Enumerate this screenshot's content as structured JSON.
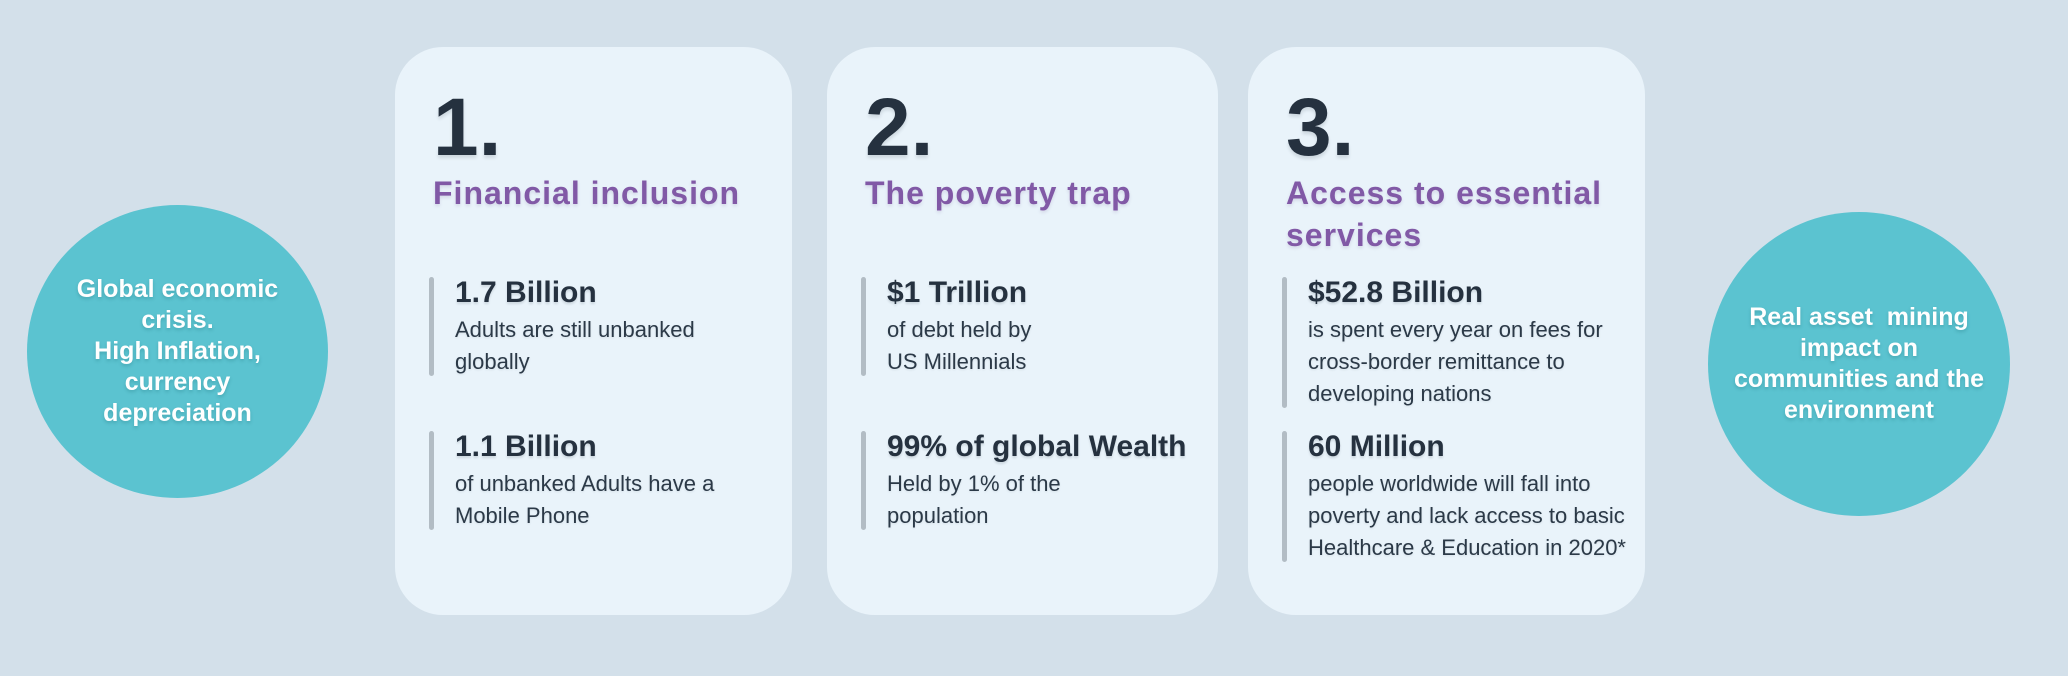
{
  "palette": {
    "background": "#d3e0ea",
    "card_bg": "#e9f3fa",
    "circle_bg": "#5bc3d0",
    "accent_purple": "#8159a6",
    "text_dark": "#25313f",
    "text_body": "#2b3947",
    "bar_gray": "#b2bcc4"
  },
  "left_circle": {
    "text": "Global economic\ncrisis.\nHigh Inflation,\ncurrency\ndepreciation"
  },
  "right_circle": {
    "text": "Real asset  mining\nimpact on\ncommunities and the\nenvironment"
  },
  "cards": [
    {
      "number": "1.",
      "title": "Financial inclusion",
      "stats": [
        {
          "value": "1.7 Billion",
          "description": "Adults are still unbanked\nglobally"
        },
        {
          "value": "1.1 Billion",
          "description": "of unbanked Adults have a\nMobile Phone"
        }
      ]
    },
    {
      "number": "2.",
      "title": "The poverty trap",
      "stats": [
        {
          "value": "$1 Trillion",
          "description": "of debt held by\nUS Millennials"
        },
        {
          "value": "99% of global Wealth",
          "description": "Held by 1% of the\npopulation"
        }
      ]
    },
    {
      "number": "3.",
      "title": "Access to essential\nservices",
      "stats": [
        {
          "value": "$52.8 Billion",
          "description": "is spent every year on fees for\ncross-border remittance to\ndeveloping nations"
        },
        {
          "value": "60 Million",
          "description": "people worldwide will fall into\npoverty and lack access to basic\nHealthcare & Education in 2020*"
        }
      ]
    }
  ]
}
